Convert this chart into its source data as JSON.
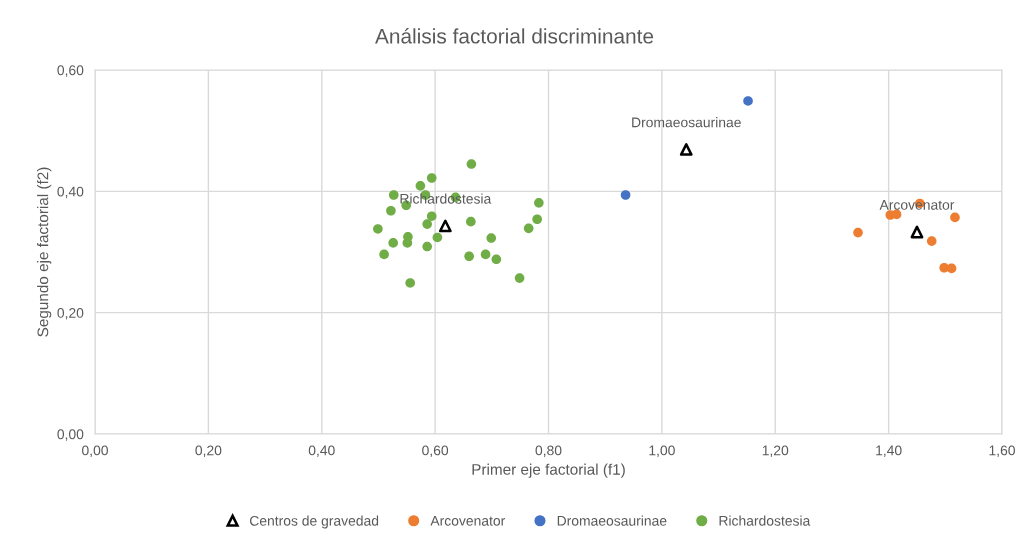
{
  "chart_data": {
    "type": "scatter",
    "title": "Análisis factorial discriminante",
    "xlabel": "Primer eje factorial (f1)",
    "ylabel": "Segundo eje factorial (f2)",
    "xlim": [
      0,
      1.6
    ],
    "xticks": [
      {
        "value": 0,
        "label": "0,00"
      },
      {
        "value": 0.2,
        "label": "0,20"
      },
      {
        "value": 0.4,
        "label": "0,40"
      },
      {
        "value": 0.6,
        "label": "0,60"
      },
      {
        "value": 0.8,
        "label": "0,80"
      },
      {
        "value": 1.0,
        "label": "1,00"
      },
      {
        "value": 1.2,
        "label": "1,20"
      },
      {
        "value": 1.4,
        "label": "1,40"
      },
      {
        "value": 1.6,
        "label": "1,60"
      }
    ],
    "ylim": [
      0,
      0.6
    ],
    "yticks": [
      {
        "value": 0,
        "label": "0,00"
      },
      {
        "value": 0.2,
        "label": "0,20"
      },
      {
        "value": 0.4,
        "label": "0,40"
      },
      {
        "value": 0.6,
        "label": "0,60"
      }
    ],
    "grid": true,
    "legend": "bottom",
    "marker": "circle",
    "series": [
      {
        "name": "Centros de gravedad",
        "color": "#000000",
        "marker": "triangle",
        "x": [
          0.618,
          1.043,
          1.45
        ],
        "values": [
          0.343,
          0.469,
          0.333
        ]
      },
      {
        "name": "Arcovenator",
        "color": "#ed7d31",
        "x": [
          1.455,
          1.403,
          1.414,
          1.517,
          1.346,
          1.476,
          1.498,
          1.511
        ],
        "values": [
          0.38,
          0.361,
          0.362,
          0.357,
          0.332,
          0.318,
          0.274,
          0.273
        ]
      },
      {
        "name": "Dromaeosaurinae",
        "color": "#4472c4",
        "x": [
          1.152,
          0.936
        ],
        "values": [
          0.549,
          0.394
        ]
      },
      {
        "name": "Richardostesia",
        "color": "#70ad47",
        "x": [
          0.664,
          0.594,
          0.574,
          0.527,
          0.583,
          0.636,
          0.783,
          0.549,
          0.522,
          0.594,
          0.78,
          0.663,
          0.586,
          0.765,
          0.499,
          0.552,
          0.604,
          0.699,
          0.526,
          0.551,
          0.586,
          0.51,
          0.66,
          0.689,
          0.708,
          0.749,
          0.556
        ],
        "values": [
          0.445,
          0.422,
          0.409,
          0.394,
          0.394,
          0.39,
          0.381,
          0.377,
          0.368,
          0.359,
          0.354,
          0.35,
          0.346,
          0.339,
          0.338,
          0.325,
          0.324,
          0.323,
          0.315,
          0.315,
          0.309,
          0.296,
          0.293,
          0.296,
          0.288,
          0.257,
          0.249
        ]
      }
    ],
    "annotations": [
      {
        "text": "Richardostesia",
        "x": 0.618,
        "y": 0.343
      },
      {
        "text": "Dromaeosaurinae",
        "x": 1.043,
        "y": 0.469
      },
      {
        "text": "Arcovenator",
        "x": 1.45,
        "y": 0.333
      }
    ]
  }
}
